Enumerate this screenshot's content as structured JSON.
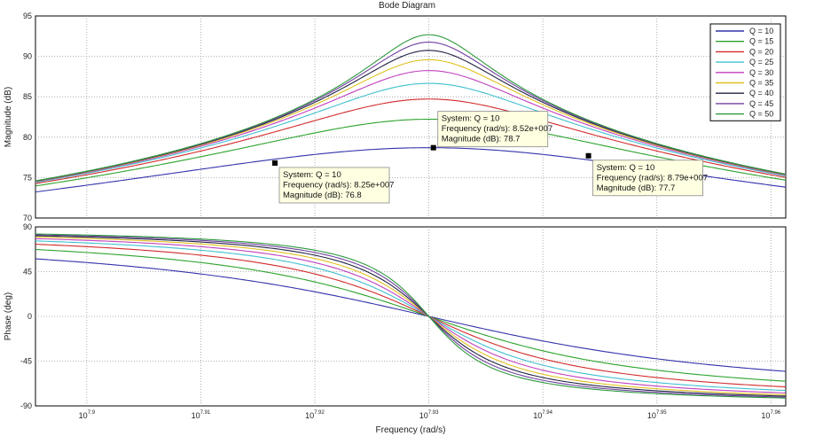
{
  "chart_data": {
    "type": "line",
    "title": "Bode Diagram",
    "xlabel": "Frequency  (rad/s)",
    "x_scale": "log",
    "x_tick_labels": [
      "10^7.9",
      "10^7.91",
      "10^7.92",
      "10^7.93",
      "10^7.94",
      "10^7.95",
      "10^7.96"
    ],
    "x_tick_base": "10",
    "x_tick_exps": [
      "7.9",
      "7.91",
      "7.92",
      "7.93",
      "7.94",
      "7.95",
      "7.96"
    ],
    "x_ticks": [
      7.9,
      7.91,
      7.92,
      7.93,
      7.94,
      7.95,
      7.96
    ],
    "xlim_log10": [
      7.8955,
      7.9613
    ],
    "grid": true,
    "legend_position": "top-right",
    "f0_log10": 7.93,
    "peak_db_at_q10": 78.7,
    "panels": {
      "magnitude": {
        "ylabel": "Magnitude (dB)",
        "ylim": [
          70,
          95
        ],
        "yticks": [
          70,
          75,
          80,
          85,
          90,
          95
        ]
      },
      "phase": {
        "ylabel": "Phase (deg)",
        "ylim": [
          -90,
          90
        ],
        "yticks": [
          -90,
          -45,
          0,
          45,
          90
        ],
        "tick_labels": [
          "-90",
          "-45",
          "0",
          "45",
          "90"
        ]
      }
    },
    "series": [
      {
        "name": "Q = 10",
        "Q": 10,
        "color": "#3333aa"
      },
      {
        "name": "Q = 15",
        "Q": 15,
        "color": "#2ea32e"
      },
      {
        "name": "Q = 20",
        "Q": 20,
        "color": "#d22b2b"
      },
      {
        "name": "Q = 25",
        "Q": 25,
        "color": "#40c0d0"
      },
      {
        "name": "Q = 30",
        "Q": 30,
        "color": "#c040c0"
      },
      {
        "name": "Q = 35",
        "Q": 35,
        "color": "#e0c020"
      },
      {
        "name": "Q = 40",
        "Q": 40,
        "color": "#222244"
      },
      {
        "name": "Q = 45",
        "Q": 45,
        "color": "#7040a0"
      },
      {
        "name": "Q = 50",
        "Q": 50,
        "color": "#2e9a3e"
      }
    ],
    "datatips": [
      {
        "system": "System: Q = 10",
        "freq": "Frequency (rad/s): 8.25e+007",
        "mag": "Magnitude (dB): 76.8",
        "x_log10": 7.9165,
        "y_db": 76.8
      },
      {
        "system": "System: Q = 10",
        "freq": "Frequency (rad/s): 8.52e+007",
        "mag": "Magnitude (dB): 78.7",
        "x_log10": 7.9304,
        "y_db": 78.7
      },
      {
        "system": "System: Q = 10",
        "freq": "Frequency (rad/s): 8.79e+007",
        "mag": "Magnitude (dB): 77.7",
        "x_log10": 7.944,
        "y_db": 77.7
      }
    ]
  }
}
